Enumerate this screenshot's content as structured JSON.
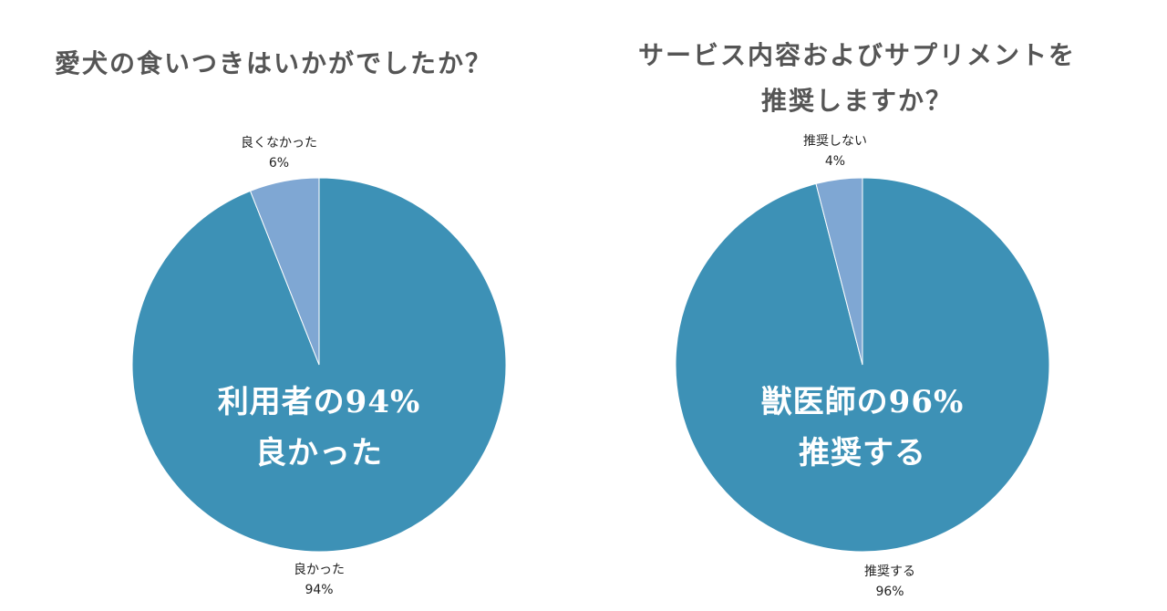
{
  "chart_data": [
    {
      "type": "pie",
      "title": "愛犬の食いつきはいかがでしたか？",
      "slices": [
        {
          "label": "良かった",
          "value": 94,
          "display": "94%",
          "color": "#3d91b6"
        },
        {
          "label": "良くなかった",
          "value": 6,
          "display": "6%",
          "color": "#7fa7d3"
        }
      ],
      "center_text": [
        "利用者の94%",
        "良かった"
      ]
    },
    {
      "type": "pie",
      "title": "サービス内容およびサプリメントを 推奨しますか？",
      "title_lines": [
        "サービス内容およびサプリメントを",
        "推奨しますか？"
      ],
      "slices": [
        {
          "label": "推奨する",
          "value": 96,
          "display": "96%",
          "color": "#3d91b6"
        },
        {
          "label": "推奨しない",
          "value": 4,
          "display": "4%",
          "color": "#7fa7d3"
        }
      ],
      "center_text": [
        "獣医師の96%",
        "推奨する"
      ]
    }
  ]
}
